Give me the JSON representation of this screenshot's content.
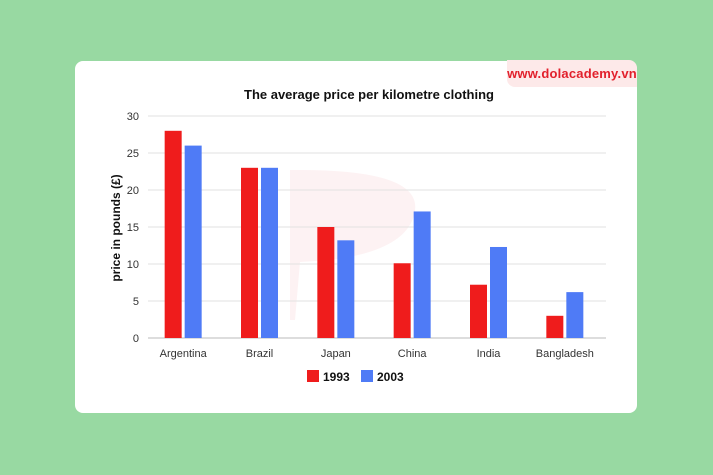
{
  "watermark": "www.dolacademy.vn",
  "colors": {
    "s1993": "#ef1c1c",
    "s2003": "#4f7bf6",
    "grid": "#e2e2e2",
    "axis": "#bbbbbb"
  },
  "chart_data": {
    "type": "bar",
    "title": "The average price per kilometre clothing",
    "xlabel": "",
    "ylabel": "price in pounds (£)",
    "ylim": [
      0,
      30
    ],
    "yticks": [
      0,
      5,
      10,
      15,
      20,
      25,
      30
    ],
    "categories": [
      "Argentina",
      "Brazil",
      "Japan",
      "China",
      "India",
      "Bangladesh"
    ],
    "series": [
      {
        "name": "1993",
        "values": [
          28,
          23,
          15,
          10.1,
          7.2,
          3
        ]
      },
      {
        "name": "2003",
        "values": [
          26,
          23,
          13.2,
          17.1,
          12.3,
          6.2
        ]
      }
    ],
    "legend_position": "bottom-center"
  }
}
